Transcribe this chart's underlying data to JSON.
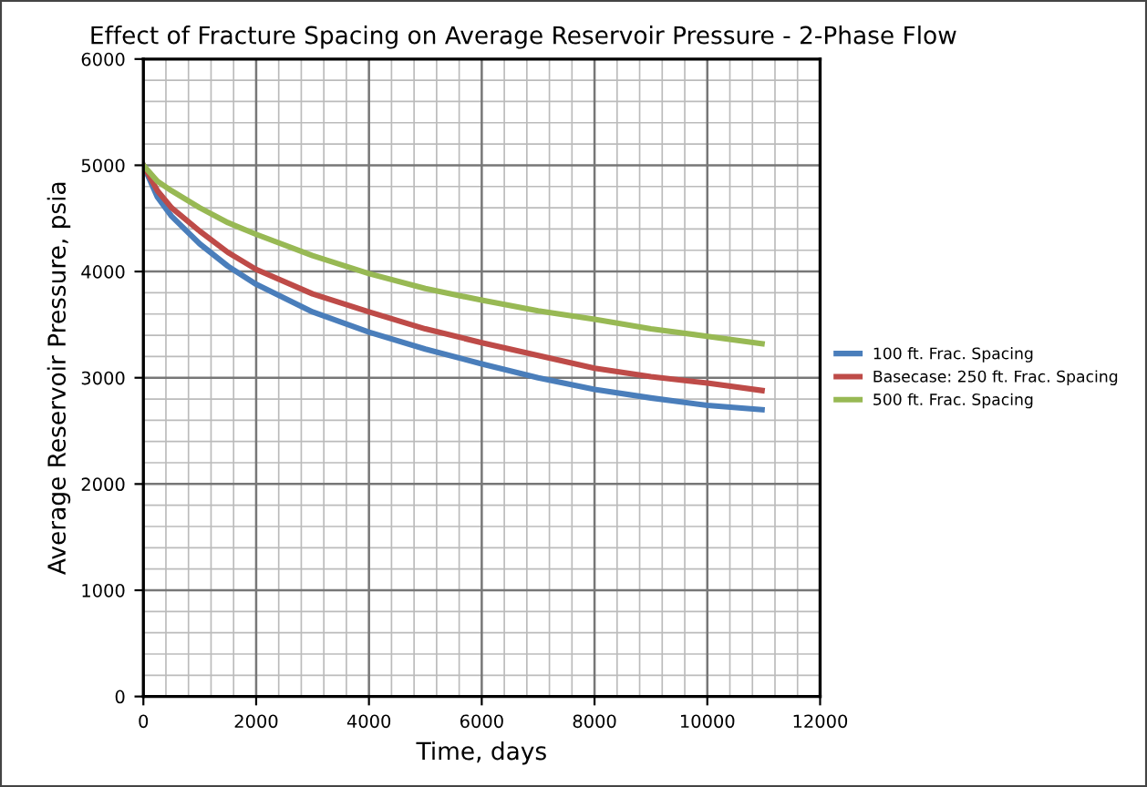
{
  "chart_data": {
    "type": "line",
    "title": "Effect of Fracture Spacing on Average Reservoir Pressure - 2-Phase Flow",
    "xlabel": "Time, days",
    "ylabel": "Average Reservoir Pressure, psia",
    "xlim": [
      0,
      12000
    ],
    "ylim": [
      0,
      6000
    ],
    "xticks": [
      0,
      2000,
      4000,
      6000,
      8000,
      10000,
      12000
    ],
    "yticks": [
      0,
      1000,
      2000,
      3000,
      4000,
      5000,
      6000
    ],
    "grid": true,
    "legend": "right",
    "marker": "none",
    "line_style": "solid",
    "x": [
      0,
      250,
      500,
      1000,
      1500,
      2000,
      3000,
      4000,
      5000,
      6000,
      7000,
      8000,
      9000,
      10000,
      10970
    ],
    "series": [
      {
        "name": "100 ft. Frac. Spacing",
        "color": "#4a7ebb",
        "values": [
          5000,
          4700,
          4520,
          4260,
          4050,
          3880,
          3620,
          3430,
          3270,
          3130,
          3000,
          2890,
          2810,
          2740,
          2700
        ]
      },
      {
        "name": "Basecase: 250 ft. Frac. Spacing",
        "color": "#be4b48",
        "values": [
          5000,
          4760,
          4600,
          4380,
          4180,
          4020,
          3790,
          3620,
          3460,
          3330,
          3210,
          3090,
          3010,
          2950,
          2880
        ]
      },
      {
        "name": "500 ft. Frac. Spacing",
        "color": "#98b954",
        "values": [
          5000,
          4850,
          4760,
          4600,
          4460,
          4350,
          4150,
          3980,
          3840,
          3730,
          3630,
          3550,
          3460,
          3390,
          3320
        ]
      }
    ]
  }
}
